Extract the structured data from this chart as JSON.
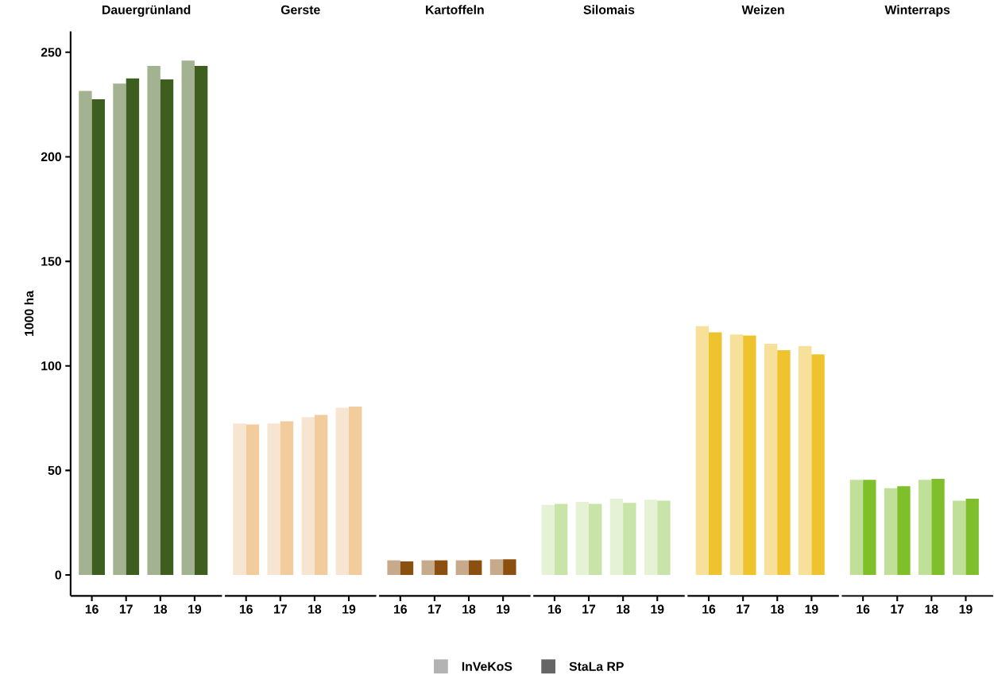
{
  "chart_data": [
    {
      "type": "bar",
      "title": "Dauergrünland",
      "ylabel": "1000 ha",
      "categories": [
        "16",
        "17",
        "18",
        "19"
      ],
      "ylim": [
        -10,
        260
      ],
      "yticks": [
        0,
        50,
        100,
        150,
        200,
        250
      ],
      "series": [
        {
          "color": "#a3b391",
          "values": [
            231.5,
            235,
            243.5,
            246
          ]
        },
        {
          "color": "#3e5e1f",
          "values": [
            227.5,
            237.5,
            237,
            243.5
          ]
        }
      ]
    },
    {
      "type": "bar",
      "title": "Gerste",
      "categories": [
        "16",
        "17",
        "18",
        "19"
      ],
      "ylim": [
        -10,
        250
      ],
      "yticks": [
        0,
        50,
        100,
        150,
        200,
        250
      ],
      "tick_labels": "x",
      "series": [
        {
          "color": "#f8e5d1",
          "values": [
            72.5,
            72.5,
            75.5,
            80
          ]
        },
        {
          "color": "#f2cc9c",
          "values": [
            72,
            73.5,
            76.5,
            80.5
          ]
        }
      ]
    },
    {
      "type": "bar",
      "title": "Kartoffeln",
      "categories": [
        "16",
        "17",
        "18",
        "19"
      ],
      "ylim": [
        -10,
        250
      ],
      "yticks": [
        0,
        50,
        100,
        150,
        200,
        250
      ],
      "tick_labels": "x",
      "series": [
        {
          "color": "#c7aa8b",
          "values": [
            7,
            7,
            7,
            7.5
          ]
        },
        {
          "color": "#8b4f0f",
          "values": [
            6.5,
            7,
            7,
            7.5
          ]
        }
      ]
    },
    {
      "type": "bar",
      "title": "Silomais",
      "categories": [
        "16",
        "17",
        "18",
        "19"
      ],
      "ylim": [
        -10,
        250
      ],
      "yticks": [
        0,
        50,
        100,
        150,
        200,
        250
      ],
      "tick_labels": "x",
      "series": [
        {
          "color": "#e5f2d6",
          "values": [
            33.5,
            35,
            36.5,
            36
          ]
        },
        {
          "color": "#c9e4a9",
          "values": [
            34,
            34,
            34.5,
            35.5
          ]
        }
      ]
    },
    {
      "type": "bar",
      "title": "Weizen",
      "categories": [
        "16",
        "17",
        "18",
        "19"
      ],
      "ylim": [
        -10,
        250
      ],
      "yticks": [
        0,
        50,
        100,
        150,
        200,
        250
      ],
      "tick_labels": "x",
      "series": [
        {
          "color": "#f7e09a",
          "values": [
            119,
            115,
            110.5,
            109.5
          ]
        },
        {
          "color": "#eec32d",
          "values": [
            116,
            114.5,
            107.5,
            105.5
          ]
        }
      ]
    },
    {
      "type": "bar",
      "title": "Winterraps",
      "categories": [
        "16",
        "17",
        "18",
        "19"
      ],
      "ylim": [
        -10,
        250
      ],
      "yticks": [
        0,
        50,
        100,
        150,
        200,
        250
      ],
      "tick_labels": "x",
      "series": [
        {
          "color": "#c0df98",
          "values": [
            45.5,
            41.5,
            45.5,
            35.5
          ]
        },
        {
          "color": "#7fc02a",
          "values": [
            45.5,
            42.5,
            46,
            36.5
          ]
        }
      ]
    },
    {
      "type": "other",
      "categories": [
        "InVeKoS",
        "StaLa RP"
      ],
      "colors": [
        "#b3b3b3",
        "#666666"
      ]
    }
  ]
}
